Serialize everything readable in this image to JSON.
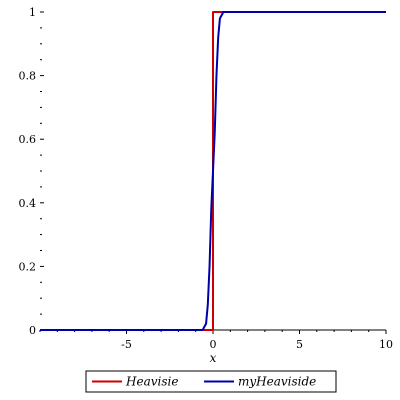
{
  "chart_data": {
    "type": "line",
    "xlabel": "x",
    "ylabel": "",
    "title": "",
    "xlim": [
      -10,
      10
    ],
    "ylim": [
      0,
      1
    ],
    "xticks": [
      -5,
      0,
      5,
      10
    ],
    "xtick_labels": [
      "-5",
      "0",
      "5",
      "10"
    ],
    "yticks": [
      0,
      0.2,
      0.4,
      0.6,
      0.8,
      1
    ],
    "ytick_labels": [
      "0",
      "0.2",
      "0.4",
      "0.6",
      "0.8",
      "1"
    ],
    "grid": false,
    "legend_position": "bottom-center",
    "series": [
      {
        "name": "Heavisie",
        "color": "#cc0000",
        "x": [
          -10,
          0,
          0,
          10
        ],
        "y": [
          0,
          0,
          1,
          1
        ]
      },
      {
        "name": "myHeaviside",
        "color": "#0000aa",
        "x": [
          -10,
          -0.6,
          -0.4,
          -0.3,
          -0.2,
          -0.1,
          0,
          0.1,
          0.2,
          0.3,
          0.4,
          0.6,
          10
        ],
        "y": [
          0,
          0,
          0.02,
          0.08,
          0.2,
          0.38,
          0.5,
          0.62,
          0.8,
          0.92,
          0.98,
          1,
          1
        ]
      }
    ]
  }
}
